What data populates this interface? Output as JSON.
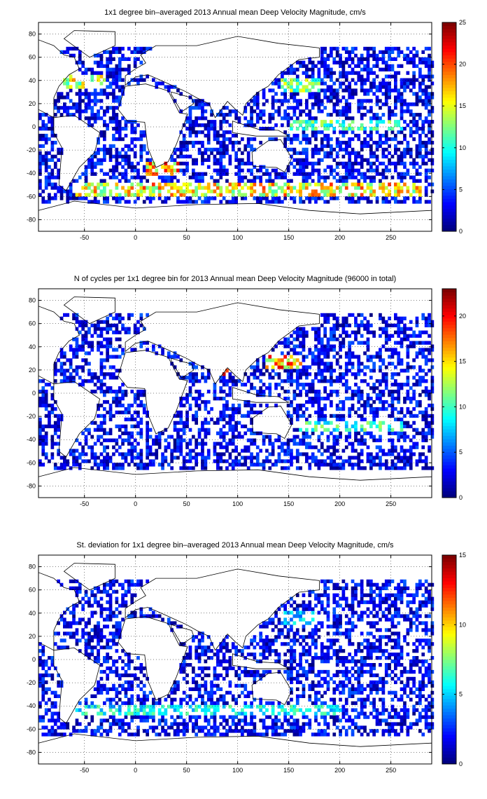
{
  "chart_data": [
    {
      "type": "heatmap",
      "title": "1x1 degree bin–averaged 2013 Annual mean Deep Velocity Magnitude, cm/s",
      "xlim": [
        -95,
        290
      ],
      "ylim": [
        -90,
        90
      ],
      "xticks": [
        -50,
        0,
        50,
        100,
        150,
        200,
        250
      ],
      "yticks": [
        80,
        60,
        40,
        20,
        0,
        -20,
        -40,
        -60,
        -80
      ],
      "colorbar": {
        "min": 0,
        "max": 25,
        "ticks": [
          0,
          5,
          10,
          15,
          20,
          25
        ]
      },
      "grid": true,
      "bands": [
        {
          "lat": -55,
          "lon_from": -60,
          "lon_to": 280,
          "value": 20
        },
        {
          "lat": 38,
          "lon_from": -75,
          "lon_to": -30,
          "value": 18
        },
        {
          "lat": 35,
          "lon_from": 140,
          "lon_to": 180,
          "value": 15
        },
        {
          "lat": 0,
          "lon_from": 150,
          "lon_to": 260,
          "value": 14
        },
        {
          "lat": -38,
          "lon_from": 10,
          "lon_to": 40,
          "value": 22
        }
      ],
      "coverage": 0.55
    },
    {
      "type": "heatmap",
      "title": "N of cycles per 1x1 degree bin for 2013 Annual mean Deep Velocity Magnitude (96000 in total)",
      "xlim": [
        -95,
        290
      ],
      "ylim": [
        -90,
        90
      ],
      "xticks": [
        -50,
        0,
        50,
        100,
        150,
        200,
        250
      ],
      "yticks": [
        80,
        60,
        40,
        20,
        0,
        -20,
        -40,
        -60,
        -80
      ],
      "colorbar": {
        "min": 0,
        "max": 23,
        "ticks": [
          0,
          5,
          10,
          15,
          20
        ]
      },
      "grid": true,
      "bands": [
        {
          "lat": 25,
          "lon_from": 125,
          "lon_to": 160,
          "value": 20
        },
        {
          "lat": 20,
          "lon_from": 80,
          "lon_to": 90,
          "value": 21
        },
        {
          "lat": -30,
          "lon_from": 160,
          "lon_to": 260,
          "value": 12
        }
      ],
      "coverage": 0.5
    },
    {
      "type": "heatmap",
      "title": "St. deviation for 1x1 degree bin–averaged 2013 Annual mean Deep Velocity Magnitude, cm/s",
      "xlim": [
        -95,
        290
      ],
      "ylim": [
        -90,
        90
      ],
      "xticks": [
        -50,
        0,
        50,
        100,
        150,
        200,
        250
      ],
      "yticks": [
        80,
        60,
        40,
        20,
        0,
        -20,
        -40,
        -60,
        -80
      ],
      "colorbar": {
        "min": 0,
        "max": 15,
        "ticks": [
          0,
          5,
          10,
          15
        ]
      },
      "grid": true,
      "bands": [
        {
          "lat": -45,
          "lon_from": -60,
          "lon_to": 200,
          "value": 7
        },
        {
          "lat": 35,
          "lon_from": 140,
          "lon_to": 175,
          "value": 6
        }
      ],
      "coverage": 0.52
    }
  ]
}
